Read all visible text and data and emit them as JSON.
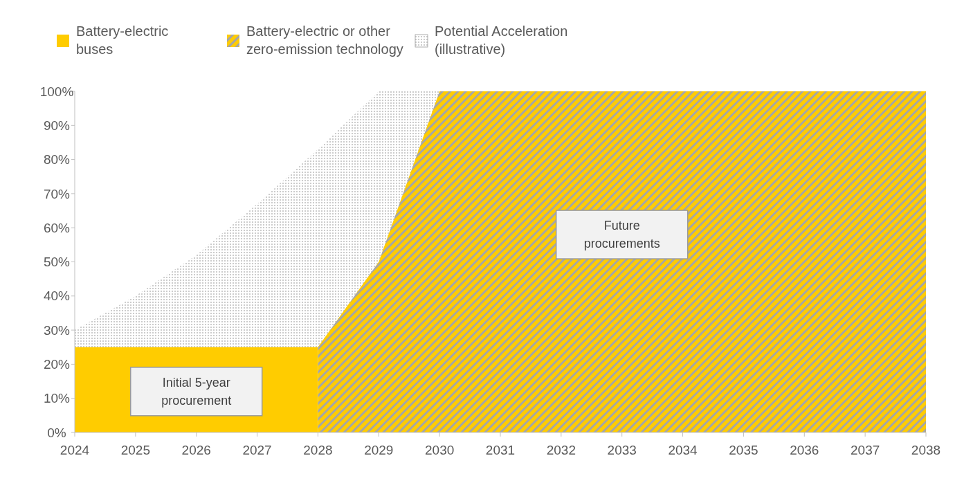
{
  "chart_data": {
    "type": "area",
    "series": [
      {
        "name": "Battery-electric buses",
        "color": "#ffcc00",
        "x": [
          2024,
          2028
        ],
        "values": [
          25,
          25
        ]
      },
      {
        "name": "Battery-electric or other zero-emission technology",
        "color": "#ffcc00",
        "x": [
          2028,
          2029,
          2030,
          2038
        ],
        "values": [
          25,
          50,
          100,
          100
        ]
      },
      {
        "name": "Potential Acceleration (illustrative)",
        "color": "#8c8c8c",
        "x": [
          2024,
          2025,
          2026,
          2027,
          2028,
          2029,
          2030
        ],
        "values": [
          30,
          40,
          52,
          67,
          83,
          100,
          100
        ]
      }
    ],
    "xlim": [
      2024,
      2038
    ],
    "xticks": [
      2024,
      2025,
      2026,
      2027,
      2028,
      2029,
      2030,
      2031,
      2032,
      2033,
      2034,
      2035,
      2036,
      2037,
      2038
    ],
    "ylim": [
      0,
      100
    ],
    "yticks": [
      {
        "value": 0,
        "label": "0%"
      },
      {
        "value": 10,
        "label": "10%"
      },
      {
        "value": 20,
        "label": "20%"
      },
      {
        "value": 30,
        "label": "30%"
      },
      {
        "value": 40,
        "label": "40%"
      },
      {
        "value": 50,
        "label": "50%"
      },
      {
        "value": 60,
        "label": "60%"
      },
      {
        "value": 70,
        "label": "70%"
      },
      {
        "value": 80,
        "label": "80%"
      },
      {
        "value": 90,
        "label": "90%"
      },
      {
        "value": 100,
        "label": "100%"
      }
    ],
    "annotations": [
      "Initial 5-year procurement",
      "Future procurements"
    ],
    "legend": "top left",
    "grid": false
  }
}
